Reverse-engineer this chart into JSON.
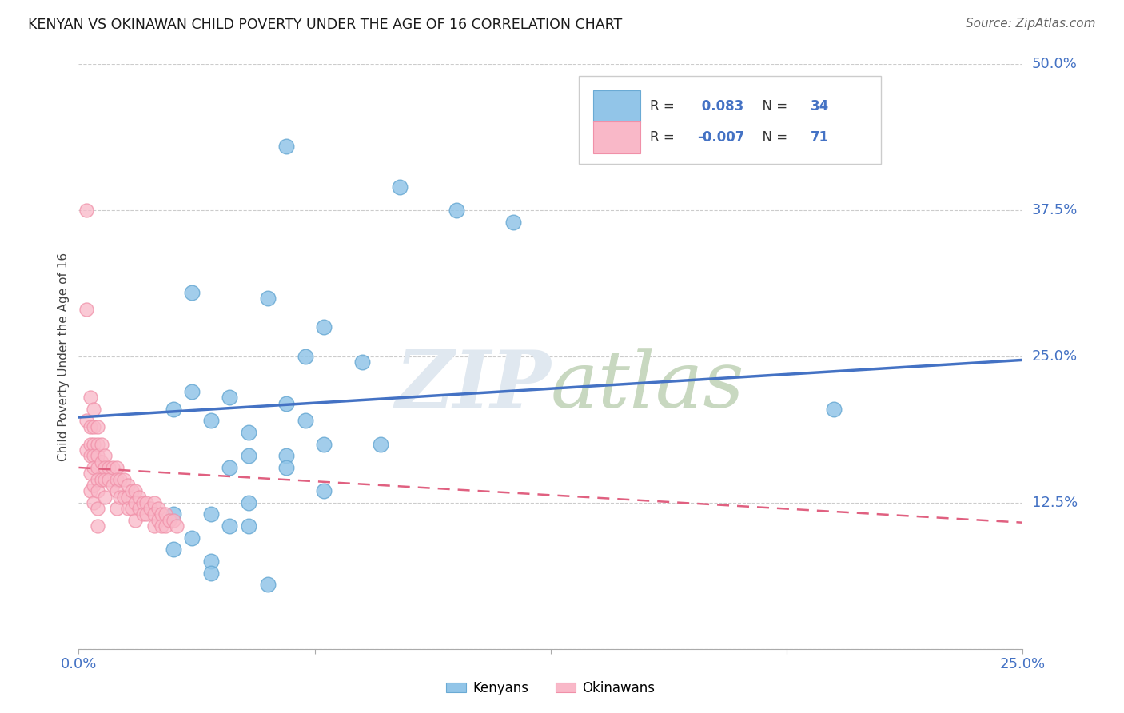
{
  "title": "KENYAN VS OKINAWAN CHILD POVERTY UNDER THE AGE OF 16 CORRELATION CHART",
  "source": "Source: ZipAtlas.com",
  "ylabel": "Child Poverty Under the Age of 16",
  "kenyan_R": 0.083,
  "kenyan_N": 34,
  "okinawan_R": -0.007,
  "okinawan_N": 71,
  "xlim": [
    0.0,
    0.25
  ],
  "ylim": [
    0.0,
    0.5
  ],
  "kenyan_color": "#92C5E8",
  "okinawan_color": "#F9B8C8",
  "kenyan_edge_color": "#6AAAD4",
  "okinawan_edge_color": "#F090A8",
  "kenyan_line_color": "#4472C4",
  "okinawan_line_color": "#E06080",
  "background_color": "#FFFFFF",
  "grid_color": "#CCCCCC",
  "title_color": "#1A1A1A",
  "axis_label_color": "#4472C4",
  "watermark_color": "#E0E8F0",
  "kenyan_scatter_x": [
    0.055,
    0.085,
    0.1,
    0.115,
    0.03,
    0.05,
    0.065,
    0.06,
    0.075,
    0.03,
    0.04,
    0.055,
    0.025,
    0.035,
    0.06,
    0.045,
    0.065,
    0.08,
    0.045,
    0.055,
    0.04,
    0.055,
    0.065,
    0.045,
    0.035,
    0.025,
    0.04,
    0.045,
    0.03,
    0.025,
    0.035,
    0.2,
    0.035,
    0.05
  ],
  "kenyan_scatter_y": [
    0.43,
    0.395,
    0.375,
    0.365,
    0.305,
    0.3,
    0.275,
    0.25,
    0.245,
    0.22,
    0.215,
    0.21,
    0.205,
    0.195,
    0.195,
    0.185,
    0.175,
    0.175,
    0.165,
    0.165,
    0.155,
    0.155,
    0.135,
    0.125,
    0.115,
    0.115,
    0.105,
    0.105,
    0.095,
    0.085,
    0.075,
    0.205,
    0.065,
    0.055
  ],
  "okinawan_scatter_x": [
    0.002,
    0.002,
    0.002,
    0.002,
    0.003,
    0.003,
    0.003,
    0.003,
    0.003,
    0.003,
    0.004,
    0.004,
    0.004,
    0.004,
    0.004,
    0.004,
    0.004,
    0.005,
    0.005,
    0.005,
    0.005,
    0.005,
    0.005,
    0.005,
    0.005,
    0.006,
    0.006,
    0.006,
    0.007,
    0.007,
    0.007,
    0.007,
    0.008,
    0.008,
    0.009,
    0.009,
    0.01,
    0.01,
    0.01,
    0.01,
    0.011,
    0.011,
    0.012,
    0.012,
    0.013,
    0.013,
    0.013,
    0.014,
    0.014,
    0.015,
    0.015,
    0.015,
    0.016,
    0.016,
    0.017,
    0.017,
    0.018,
    0.018,
    0.019,
    0.02,
    0.02,
    0.02,
    0.021,
    0.021,
    0.022,
    0.022,
    0.023,
    0.023,
    0.024,
    0.025,
    0.026
  ],
  "okinawan_scatter_y": [
    0.375,
    0.29,
    0.195,
    0.17,
    0.215,
    0.19,
    0.175,
    0.165,
    0.15,
    0.135,
    0.205,
    0.19,
    0.175,
    0.165,
    0.155,
    0.14,
    0.125,
    0.19,
    0.175,
    0.165,
    0.155,
    0.145,
    0.135,
    0.12,
    0.105,
    0.175,
    0.16,
    0.145,
    0.165,
    0.155,
    0.145,
    0.13,
    0.155,
    0.145,
    0.155,
    0.14,
    0.155,
    0.145,
    0.135,
    0.12,
    0.145,
    0.13,
    0.145,
    0.13,
    0.14,
    0.13,
    0.12,
    0.135,
    0.12,
    0.135,
    0.125,
    0.11,
    0.13,
    0.12,
    0.125,
    0.115,
    0.125,
    0.115,
    0.12,
    0.125,
    0.115,
    0.105,
    0.12,
    0.11,
    0.115,
    0.105,
    0.115,
    0.105,
    0.11,
    0.11,
    0.105
  ],
  "kenyan_line_x": [
    0.0,
    0.25
  ],
  "kenyan_line_y": [
    0.198,
    0.247
  ],
  "okinawan_line_x": [
    0.0,
    0.25
  ],
  "okinawan_line_y": [
    0.155,
    0.108
  ]
}
